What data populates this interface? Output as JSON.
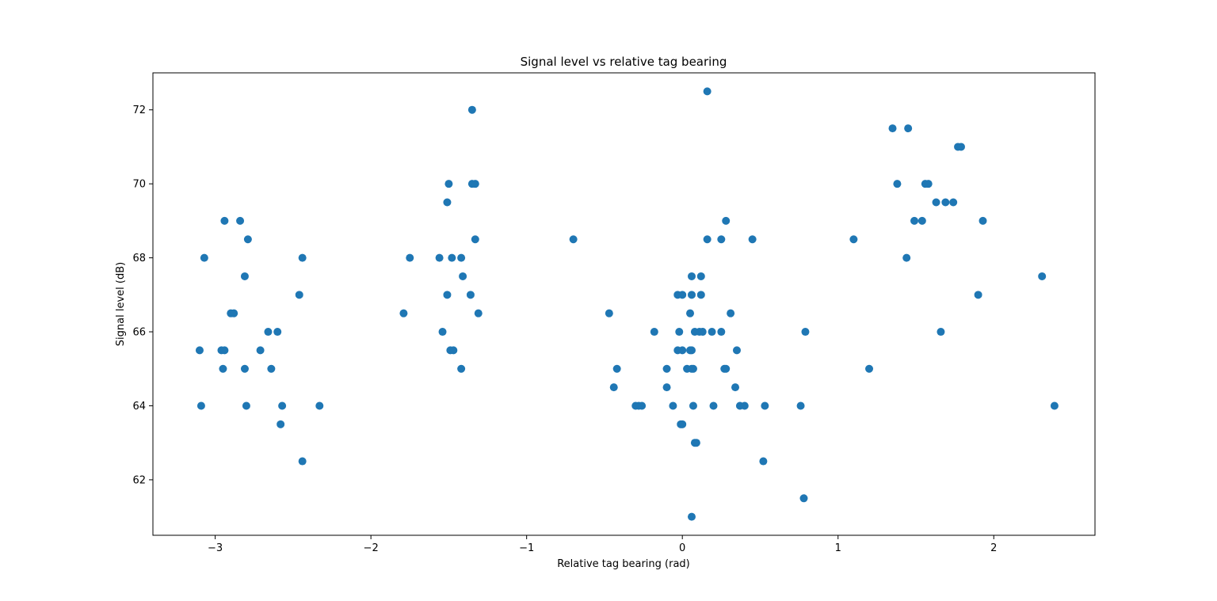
{
  "chart_data": {
    "type": "scatter",
    "title": "Signal level vs relative tag bearing",
    "xlabel": "Relative tag bearing (rad)",
    "ylabel": "Signal level (dB)",
    "xlim": [
      -3.4,
      2.65
    ],
    "ylim": [
      60.5,
      73.0
    ],
    "xticks": [
      -3,
      -2,
      -1,
      0,
      1,
      2
    ],
    "yticks": [
      62,
      64,
      66,
      68,
      70,
      72
    ],
    "xtick_labels": [
      "−3",
      "−2",
      "−1",
      "0",
      "1",
      "2"
    ],
    "ytick_labels": [
      "62",
      "64",
      "66",
      "68",
      "70",
      "72"
    ],
    "grid": false,
    "legend": "none",
    "marker_color": "#1f77b4",
    "series": [
      {
        "points": [
          [
            -3.1,
            65.5
          ],
          [
            -3.09,
            64.0
          ],
          [
            -3.07,
            68.0
          ],
          [
            -2.96,
            65.5
          ],
          [
            -2.94,
            65.5
          ],
          [
            -2.95,
            65.0
          ],
          [
            -2.94,
            69.0
          ],
          [
            -2.9,
            66.5
          ],
          [
            -2.88,
            66.5
          ],
          [
            -2.84,
            69.0
          ],
          [
            -2.81,
            67.5
          ],
          [
            -2.81,
            65.0
          ],
          [
            -2.8,
            64.0
          ],
          [
            -2.79,
            68.5
          ],
          [
            -2.71,
            65.5
          ],
          [
            -2.66,
            66.0
          ],
          [
            -2.64,
            65.0
          ],
          [
            -2.6,
            66.0
          ],
          [
            -2.57,
            64.0
          ],
          [
            -2.58,
            63.5
          ],
          [
            -2.46,
            67.0
          ],
          [
            -2.44,
            68.0
          ],
          [
            -2.44,
            62.5
          ],
          [
            -2.33,
            64.0
          ],
          [
            -1.79,
            66.5
          ],
          [
            -1.75,
            68.0
          ],
          [
            -1.56,
            68.0
          ],
          [
            -1.54,
            66.0
          ],
          [
            -1.51,
            67.0
          ],
          [
            -1.51,
            69.5
          ],
          [
            -1.5,
            70.0
          ],
          [
            -1.49,
            65.5
          ],
          [
            -1.48,
            68.0
          ],
          [
            -1.47,
            65.5
          ],
          [
            -1.42,
            68.0
          ],
          [
            -1.41,
            67.5
          ],
          [
            -1.42,
            65.0
          ],
          [
            -1.36,
            67.0
          ],
          [
            -1.35,
            72.0
          ],
          [
            -1.35,
            70.0
          ],
          [
            -1.33,
            70.0
          ],
          [
            -1.33,
            68.5
          ],
          [
            -1.31,
            66.5
          ],
          [
            -0.7,
            68.5
          ],
          [
            -0.47,
            66.5
          ],
          [
            -0.44,
            64.5
          ],
          [
            -0.42,
            65.0
          ],
          [
            -0.3,
            64.0
          ],
          [
            -0.28,
            64.0
          ],
          [
            -0.26,
            64.0
          ],
          [
            -0.18,
            66.0
          ],
          [
            -0.1,
            65.0
          ],
          [
            -0.1,
            64.5
          ],
          [
            -0.06,
            64.0
          ],
          [
            -0.03,
            65.5
          ],
          [
            -0.03,
            67.0
          ],
          [
            -0.02,
            66.0
          ],
          [
            -0.01,
            63.5
          ],
          [
            0.0,
            65.5
          ],
          [
            0.0,
            67.0
          ],
          [
            0.0,
            63.5
          ],
          [
            0.03,
            65.0
          ],
          [
            0.05,
            66.5
          ],
          [
            0.05,
            65.5
          ],
          [
            0.06,
            65.0
          ],
          [
            0.06,
            65.5
          ],
          [
            0.06,
            67.5
          ],
          [
            0.06,
            67.0
          ],
          [
            0.06,
            61.0
          ],
          [
            0.07,
            65.0
          ],
          [
            0.07,
            64.0
          ],
          [
            0.08,
            63.0
          ],
          [
            0.08,
            66.0
          ],
          [
            0.09,
            63.0
          ],
          [
            0.11,
            66.0
          ],
          [
            0.12,
            67.0
          ],
          [
            0.12,
            67.5
          ],
          [
            0.13,
            66.0
          ],
          [
            0.16,
            68.5
          ],
          [
            0.16,
            72.5
          ],
          [
            0.19,
            66.0
          ],
          [
            0.2,
            64.0
          ],
          [
            0.25,
            68.5
          ],
          [
            0.25,
            66.0
          ],
          [
            0.27,
            65.0
          ],
          [
            0.28,
            65.0
          ],
          [
            0.28,
            69.0
          ],
          [
            0.31,
            66.5
          ],
          [
            0.34,
            64.5
          ],
          [
            0.35,
            65.5
          ],
          [
            0.37,
            64.0
          ],
          [
            0.4,
            64.0
          ],
          [
            0.45,
            68.5
          ],
          [
            0.52,
            62.5
          ],
          [
            0.53,
            64.0
          ],
          [
            0.76,
            64.0
          ],
          [
            0.78,
            61.5
          ],
          [
            0.79,
            66.0
          ],
          [
            1.1,
            68.5
          ],
          [
            1.2,
            65.0
          ],
          [
            1.35,
            71.5
          ],
          [
            1.38,
            70.0
          ],
          [
            1.44,
            68.0
          ],
          [
            1.45,
            71.5
          ],
          [
            1.49,
            69.0
          ],
          [
            1.54,
            69.0
          ],
          [
            1.56,
            70.0
          ],
          [
            1.58,
            70.0
          ],
          [
            1.63,
            69.5
          ],
          [
            1.66,
            66.0
          ],
          [
            1.69,
            69.5
          ],
          [
            1.74,
            69.5
          ],
          [
            1.77,
            71.0
          ],
          [
            1.79,
            71.0
          ],
          [
            1.9,
            67.0
          ],
          [
            1.93,
            69.0
          ],
          [
            2.31,
            67.5
          ],
          [
            2.39,
            64.0
          ]
        ]
      }
    ]
  }
}
